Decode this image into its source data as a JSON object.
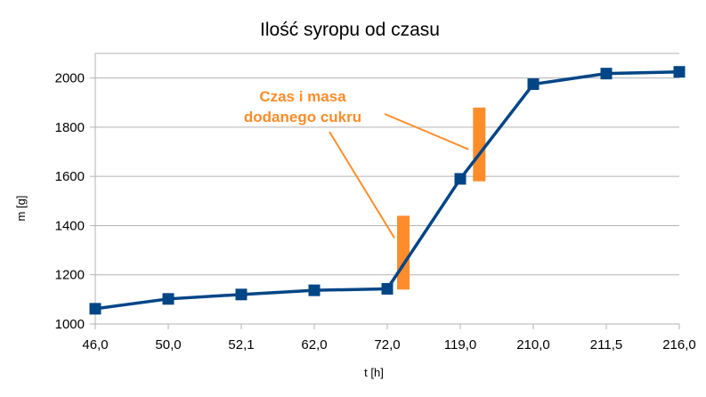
{
  "chart_data": {
    "type": "line",
    "title": "Ilość syropu od czasu",
    "xlabel": "t [h]",
    "ylabel": "m [g]",
    "categories": [
      "46,0",
      "50,0",
      "52,1",
      "62,0",
      "72,0",
      "119,0",
      "210,0",
      "211,5",
      "216,0"
    ],
    "series": [
      {
        "values": [
          1062,
          1102,
          1120,
          1137,
          1143,
          1590,
          1975,
          2018,
          2025
        ],
        "color": "#004586",
        "marker": "square"
      }
    ],
    "ylim": [
      1000,
      2100
    ],
    "yticks": [
      "1000",
      "1200",
      "1400",
      "1600",
      "1800",
      "2000"
    ],
    "grid": "horizontal",
    "legend": "none",
    "annotation": {
      "lines": [
        "Czas i masa",
        "dodanego cukru"
      ],
      "color": "#ff8c2a",
      "bars": [
        {
          "category_index": 4.22,
          "from": 1140,
          "to": 1440
        },
        {
          "category_index": 5.26,
          "from": 1580,
          "to": 1880
        }
      ]
    }
  }
}
